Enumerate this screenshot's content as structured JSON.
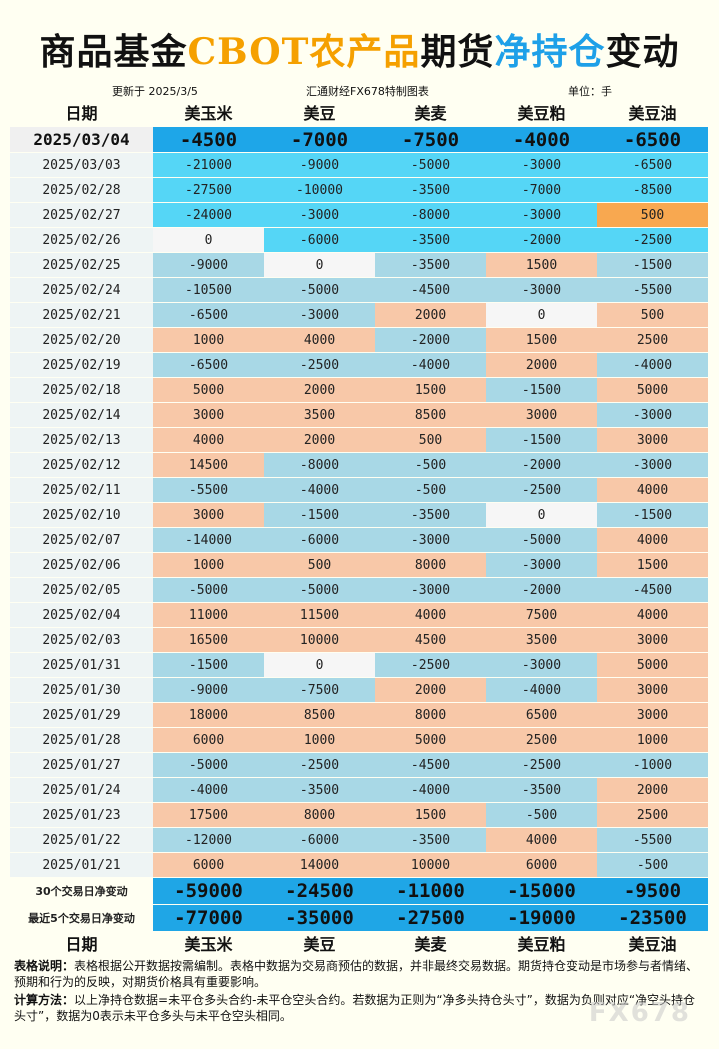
{
  "title": {
    "part1": "商品基金",
    "part2": "CBOT农产品",
    "part3": "期货",
    "part4": "净持仓",
    "part5": "变动"
  },
  "subheader": {
    "updated": "更新于 2025/3/5",
    "source": "汇通财经FX678特制图表",
    "unit": "单位：手"
  },
  "columns": [
    "日期",
    "美玉米",
    "美豆",
    "美麦",
    "美豆粕",
    "美豆油"
  ],
  "latest": {
    "date": "2025/03/04",
    "values": [
      "-4500",
      "-7000",
      "-7500",
      "-4000",
      "-6500"
    ]
  },
  "rows": [
    {
      "date": "2025/03/03",
      "values": [
        "-21000",
        "-9000",
        "-5000",
        "-3000",
        "-6500"
      ],
      "colors": [
        "cyan",
        "cyan",
        "cyan",
        "cyan",
        "cyan"
      ]
    },
    {
      "date": "2025/02/28",
      "values": [
        "-27500",
        "-10000",
        "-3500",
        "-7000",
        "-8500"
      ],
      "colors": [
        "cyan",
        "cyan",
        "cyan",
        "cyan",
        "cyan"
      ]
    },
    {
      "date": "2025/02/27",
      "values": [
        "-24000",
        "-3000",
        "-8000",
        "-3000",
        "500"
      ],
      "colors": [
        "cyan",
        "cyan",
        "cyan",
        "cyan",
        "orange"
      ]
    },
    {
      "date": "2025/02/26",
      "values": [
        "0",
        "-6000",
        "-3500",
        "-2000",
        "-2500"
      ],
      "colors": [
        "white",
        "cyan",
        "cyan",
        "cyan",
        "cyan"
      ]
    },
    {
      "date": "2025/02/25",
      "values": [
        "-9000",
        "0",
        "-3500",
        "1500",
        "-1500"
      ],
      "colors": [
        "blue",
        "white",
        "blue",
        "peach",
        "blue"
      ]
    },
    {
      "date": "2025/02/24",
      "values": [
        "-10500",
        "-5000",
        "-4500",
        "-3000",
        "-5500"
      ],
      "colors": [
        "blue",
        "blue",
        "blue",
        "blue",
        "blue"
      ]
    },
    {
      "date": "2025/02/21",
      "values": [
        "-6500",
        "-3000",
        "2000",
        "0",
        "500"
      ],
      "colors": [
        "blue",
        "blue",
        "peach",
        "white",
        "peach"
      ]
    },
    {
      "date": "2025/02/20",
      "values": [
        "1000",
        "4000",
        "-2000",
        "1500",
        "2500"
      ],
      "colors": [
        "peach",
        "peach",
        "blue",
        "peach",
        "peach"
      ]
    },
    {
      "date": "2025/02/19",
      "values": [
        "-6500",
        "-2500",
        "-4000",
        "2000",
        "-4000"
      ],
      "colors": [
        "blue",
        "blue",
        "blue",
        "peach",
        "blue"
      ]
    },
    {
      "date": "2025/02/18",
      "values": [
        "5000",
        "2000",
        "1500",
        "-1500",
        "5000"
      ],
      "colors": [
        "peach",
        "peach",
        "peach",
        "blue",
        "peach"
      ]
    },
    {
      "date": "2025/02/14",
      "values": [
        "3000",
        "3500",
        "8500",
        "3000",
        "-3000"
      ],
      "colors": [
        "peach",
        "peach",
        "peach",
        "peach",
        "blue"
      ]
    },
    {
      "date": "2025/02/13",
      "values": [
        "4000",
        "2000",
        "500",
        "-1500",
        "3000"
      ],
      "colors": [
        "peach",
        "peach",
        "peach",
        "blue",
        "peach"
      ]
    },
    {
      "date": "2025/02/12",
      "values": [
        "14500",
        "-8000",
        "-500",
        "-2000",
        "-3000"
      ],
      "colors": [
        "peach",
        "blue",
        "blue",
        "blue",
        "blue"
      ]
    },
    {
      "date": "2025/02/11",
      "values": [
        "-5500",
        "-4000",
        "-500",
        "-2500",
        "4000"
      ],
      "colors": [
        "blue",
        "blue",
        "blue",
        "blue",
        "peach"
      ]
    },
    {
      "date": "2025/02/10",
      "values": [
        "3000",
        "-1500",
        "-3500",
        "0",
        "-1500"
      ],
      "colors": [
        "peach",
        "blue",
        "blue",
        "white",
        "blue"
      ]
    },
    {
      "date": "2025/02/07",
      "values": [
        "-14000",
        "-6000",
        "-3000",
        "-5000",
        "4000"
      ],
      "colors": [
        "blue",
        "blue",
        "blue",
        "blue",
        "peach"
      ]
    },
    {
      "date": "2025/02/06",
      "values": [
        "1000",
        "500",
        "8000",
        "-3000",
        "1500"
      ],
      "colors": [
        "peach",
        "peach",
        "peach",
        "blue",
        "peach"
      ]
    },
    {
      "date": "2025/02/05",
      "values": [
        "-5000",
        "-5000",
        "-3000",
        "-2000",
        "-4500"
      ],
      "colors": [
        "blue",
        "blue",
        "blue",
        "blue",
        "blue"
      ]
    },
    {
      "date": "2025/02/04",
      "values": [
        "11000",
        "11500",
        "4000",
        "7500",
        "4000"
      ],
      "colors": [
        "peach",
        "peach",
        "peach",
        "peach",
        "peach"
      ]
    },
    {
      "date": "2025/02/03",
      "values": [
        "16500",
        "10000",
        "4500",
        "3500",
        "3000"
      ],
      "colors": [
        "peach",
        "peach",
        "peach",
        "peach",
        "peach"
      ]
    },
    {
      "date": "2025/01/31",
      "values": [
        "-1500",
        "0",
        "-2500",
        "-3000",
        "5000"
      ],
      "colors": [
        "blue",
        "white",
        "blue",
        "blue",
        "peach"
      ]
    },
    {
      "date": "2025/01/30",
      "values": [
        "-9000",
        "-7500",
        "2000",
        "-4000",
        "3000"
      ],
      "colors": [
        "blue",
        "blue",
        "peach",
        "blue",
        "peach"
      ]
    },
    {
      "date": "2025/01/29",
      "values": [
        "18000",
        "8500",
        "8000",
        "6500",
        "3000"
      ],
      "colors": [
        "peach",
        "peach",
        "peach",
        "peach",
        "peach"
      ]
    },
    {
      "date": "2025/01/28",
      "values": [
        "6000",
        "1000",
        "5000",
        "2500",
        "1000"
      ],
      "colors": [
        "peach",
        "peach",
        "peach",
        "peach",
        "peach"
      ]
    },
    {
      "date": "2025/01/27",
      "values": [
        "-5000",
        "-2500",
        "-4500",
        "-2500",
        "-1000"
      ],
      "colors": [
        "blue",
        "blue",
        "blue",
        "blue",
        "blue"
      ]
    },
    {
      "date": "2025/01/24",
      "values": [
        "-4000",
        "-3500",
        "-4000",
        "-3500",
        "2000"
      ],
      "colors": [
        "blue",
        "blue",
        "blue",
        "blue",
        "peach"
      ]
    },
    {
      "date": "2025/01/23",
      "values": [
        "17500",
        "8000",
        "1500",
        "-500",
        "2500"
      ],
      "colors": [
        "peach",
        "peach",
        "peach",
        "blue",
        "peach"
      ]
    },
    {
      "date": "2025/01/22",
      "values": [
        "-12000",
        "-6000",
        "-3500",
        "4000",
        "-5500"
      ],
      "colors": [
        "blue",
        "blue",
        "blue",
        "peach",
        "blue"
      ]
    },
    {
      "date": "2025/01/21",
      "values": [
        "6000",
        "14000",
        "10000",
        "6000",
        "-500"
      ],
      "colors": [
        "peach",
        "peach",
        "peach",
        "peach",
        "blue"
      ]
    }
  ],
  "summary": [
    {
      "label": "30个交易日净变动",
      "values": [
        "-59000",
        "-24500",
        "-11000",
        "-15000",
        "-9500"
      ]
    },
    {
      "label": "最近5个交易日净变动",
      "values": [
        "-77000",
        "-35000",
        "-27500",
        "-19000",
        "-23500"
      ]
    }
  ],
  "notes": {
    "desc_label": "表格说明：",
    "desc_text": "表格根据公开数据按需编制。表格中数据为交易商预估的数据，并非最终交易数据。期货持仓变动是市场参与者情绪、预期和行为的反映，对期货价格具有重要影响。",
    "calc_label": "计算方法：",
    "calc_text": "以上净持仓数据=未平仓多头合约-未平仓空头合约。若数据为正则为“净多头持仓头寸”，数据为负则对应“净空头持仓头寸”，数据为0表示未平仓多头与未平仓空头相同。"
  },
  "watermark": "FX678",
  "colors": {
    "dark": "#1fa6e6",
    "cyan": "#55d6f6",
    "blue": "#a8d8e6",
    "peach": "#f8c8a8",
    "orange": "#f8a850",
    "white": "#f6f6f6"
  }
}
